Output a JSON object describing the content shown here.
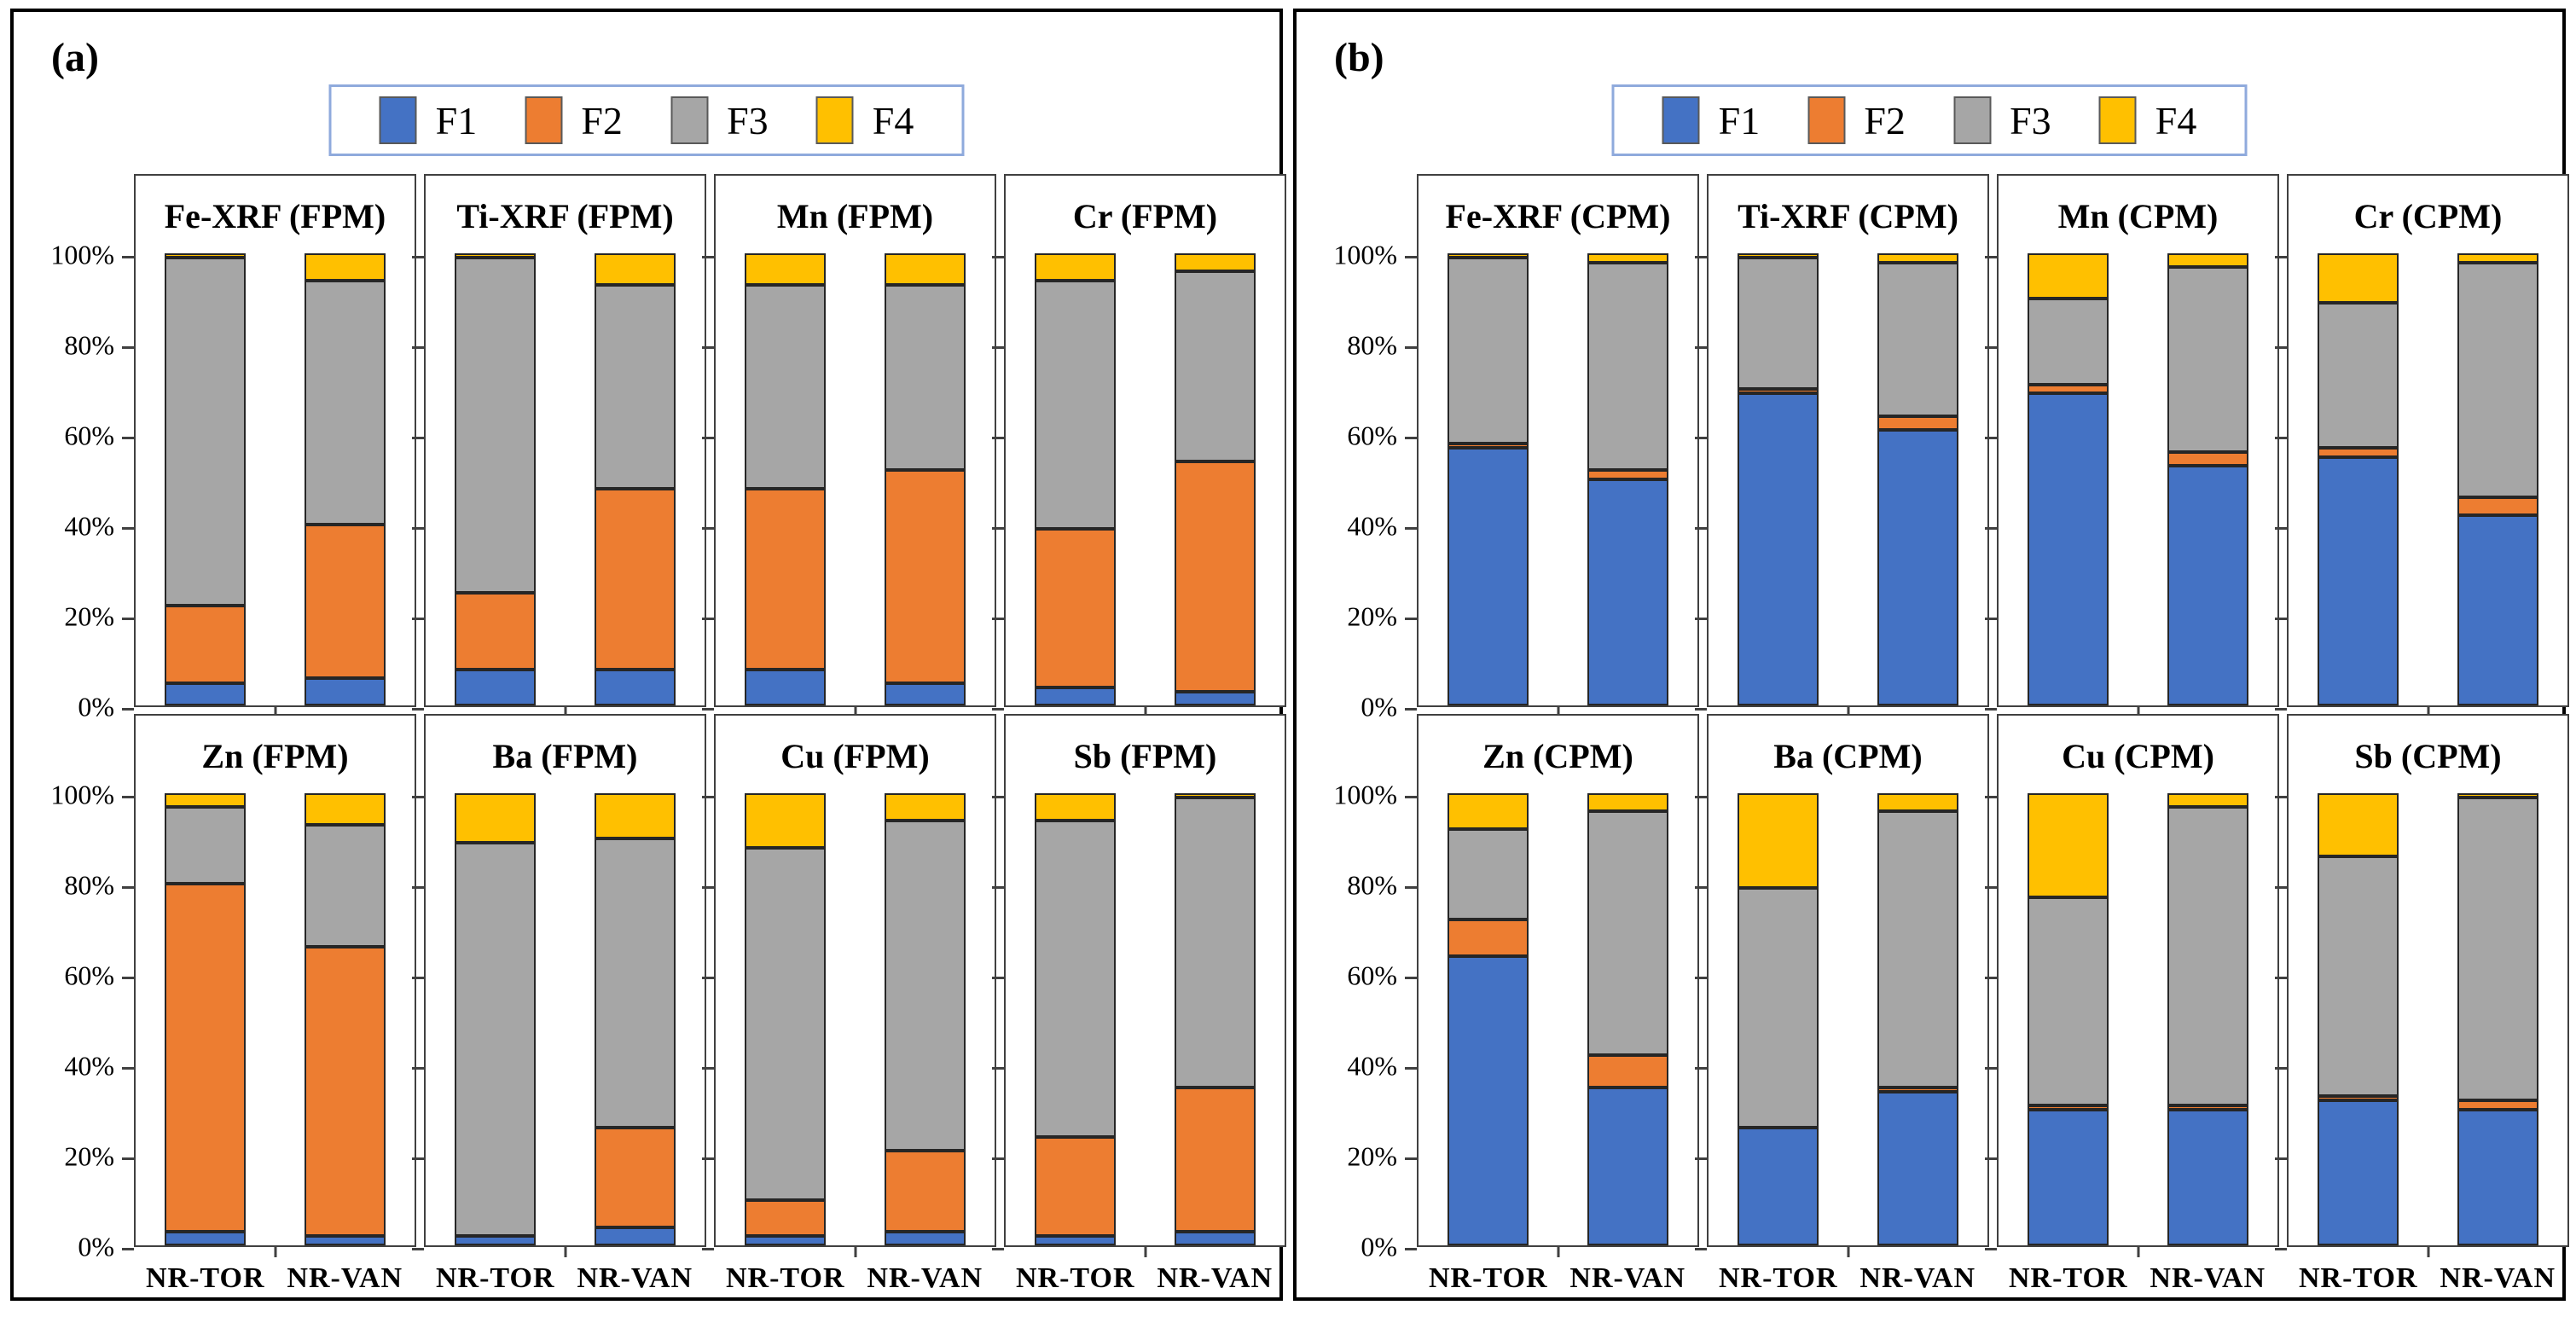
{
  "chart_data": {
    "type": "bar",
    "stacked": true,
    "unit": "percent",
    "categories": [
      "NR-TOR",
      "NR-VAN"
    ],
    "legend": [
      "F1",
      "F2",
      "F3",
      "F4"
    ],
    "series_colors": {
      "F1": "#4472C4",
      "F2": "#ED7D31",
      "F3": "#A6A6A6",
      "F4": "#FFC000"
    },
    "ylim": [
      0,
      100
    ],
    "y_tick_labels_top_to_bottom": [
      "100%",
      "80%",
      "60%",
      "40%",
      "20%",
      "0%"
    ],
    "grid": false,
    "legend_position": "top-center",
    "panels": [
      {
        "label": "(a)",
        "charts": [
          {
            "title": "Fe-XRF (FPM)",
            "series": [
              {
                "name": "F1",
                "values": [
                  5,
                  6
                ]
              },
              {
                "name": "F2",
                "values": [
                  17,
                  34
                ]
              },
              {
                "name": "F3",
                "values": [
                  77,
                  54
                ]
              },
              {
                "name": "F4",
                "values": [
                  1,
                  6
                ]
              }
            ]
          },
          {
            "title": "Ti-XRF (FPM)",
            "series": [
              {
                "name": "F1",
                "values": [
                  8,
                  8
                ]
              },
              {
                "name": "F2",
                "values": [
                  17,
                  40
                ]
              },
              {
                "name": "F3",
                "values": [
                  74,
                  45
                ]
              },
              {
                "name": "F4",
                "values": [
                  1,
                  7
                ]
              }
            ]
          },
          {
            "title": "Mn (FPM)",
            "series": [
              {
                "name": "F1",
                "values": [
                  8,
                  5
                ]
              },
              {
                "name": "F2",
                "values": [
                  40,
                  47
                ]
              },
              {
                "name": "F3",
                "values": [
                  45,
                  41
                ]
              },
              {
                "name": "F4",
                "values": [
                  7,
                  7
                ]
              }
            ]
          },
          {
            "title": "Cr (FPM)",
            "series": [
              {
                "name": "F1",
                "values": [
                  4,
                  3
                ]
              },
              {
                "name": "F2",
                "values": [
                  35,
                  51
                ]
              },
              {
                "name": "F3",
                "values": [
                  55,
                  42
                ]
              },
              {
                "name": "F4",
                "values": [
                  6,
                  4
                ]
              }
            ]
          },
          {
            "title": "Zn (FPM)",
            "series": [
              {
                "name": "F1",
                "values": [
                  3,
                  2
                ]
              },
              {
                "name": "F2",
                "values": [
                  77,
                  64
                ]
              },
              {
                "name": "F3",
                "values": [
                  17,
                  27
                ]
              },
              {
                "name": "F4",
                "values": [
                  3,
                  7
                ]
              }
            ]
          },
          {
            "title": "Ba (FPM)",
            "series": [
              {
                "name": "F1",
                "values": [
                  2,
                  4
                ]
              },
              {
                "name": "F2",
                "values": [
                  0,
                  22
                ]
              },
              {
                "name": "F3",
                "values": [
                  87,
                  64
                ]
              },
              {
                "name": "F4",
                "values": [
                  11,
                  10
                ]
              }
            ]
          },
          {
            "title": "Cu (FPM)",
            "series": [
              {
                "name": "F1",
                "values": [
                  2,
                  3
                ]
              },
              {
                "name": "F2",
                "values": [
                  8,
                  18
                ]
              },
              {
                "name": "F3",
                "values": [
                  78,
                  73
                ]
              },
              {
                "name": "F4",
                "values": [
                  12,
                  6
                ]
              }
            ]
          },
          {
            "title": "Sb (FPM)",
            "series": [
              {
                "name": "F1",
                "values": [
                  2,
                  3
                ]
              },
              {
                "name": "F2",
                "values": [
                  22,
                  32
                ]
              },
              {
                "name": "F3",
                "values": [
                  70,
                  64
                ]
              },
              {
                "name": "F4",
                "values": [
                  6,
                  1
                ]
              }
            ]
          }
        ]
      },
      {
        "label": "(b)",
        "charts": [
          {
            "title": "Fe-XRF (CPM)",
            "series": [
              {
                "name": "F1",
                "values": [
                  57,
                  50
                ]
              },
              {
                "name": "F2",
                "values": [
                  1,
                  2
                ]
              },
              {
                "name": "F3",
                "values": [
                  41,
                  46
                ]
              },
              {
                "name": "F4",
                "values": [
                  1,
                  2
                ]
              }
            ]
          },
          {
            "title": "Ti-XRF (CPM)",
            "series": [
              {
                "name": "F1",
                "values": [
                  69,
                  61
                ]
              },
              {
                "name": "F2",
                "values": [
                  1,
                  3
                ]
              },
              {
                "name": "F3",
                "values": [
                  29,
                  34
                ]
              },
              {
                "name": "F4",
                "values": [
                  1,
                  2
                ]
              }
            ]
          },
          {
            "title": "Mn (CPM)",
            "series": [
              {
                "name": "F1",
                "values": [
                  69,
                  53
                ]
              },
              {
                "name": "F2",
                "values": [
                  2,
                  3
                ]
              },
              {
                "name": "F3",
                "values": [
                  19,
                  41
                ]
              },
              {
                "name": "F4",
                "values": [
                  10,
                  3
                ]
              }
            ]
          },
          {
            "title": "Cr (CPM)",
            "series": [
              {
                "name": "F1",
                "values": [
                  55,
                  42
                ]
              },
              {
                "name": "F2",
                "values": [
                  2,
                  4
                ]
              },
              {
                "name": "F3",
                "values": [
                  32,
                  52
                ]
              },
              {
                "name": "F4",
                "values": [
                  11,
                  2
                ]
              }
            ]
          },
          {
            "title": "Zn (CPM)",
            "series": [
              {
                "name": "F1",
                "values": [
                  64,
                  35
                ]
              },
              {
                "name": "F2",
                "values": [
                  8,
                  7
                ]
              },
              {
                "name": "F3",
                "values": [
                  20,
                  54
                ]
              },
              {
                "name": "F4",
                "values": [
                  8,
                  4
                ]
              }
            ]
          },
          {
            "title": "Ba (CPM)",
            "series": [
              {
                "name": "F1",
                "values": [
                  26,
                  34
                ]
              },
              {
                "name": "F2",
                "values": [
                  0,
                  1
                ]
              },
              {
                "name": "F3",
                "values": [
                  53,
                  61
                ]
              },
              {
                "name": "F4",
                "values": [
                  21,
                  4
                ]
              }
            ]
          },
          {
            "title": "Cu (CPM)",
            "series": [
              {
                "name": "F1",
                "values": [
                  30,
                  30
                ]
              },
              {
                "name": "F2",
                "values": [
                  1,
                  1
                ]
              },
              {
                "name": "F3",
                "values": [
                  46,
                  66
                ]
              },
              {
                "name": "F4",
                "values": [
                  23,
                  3
                ]
              }
            ]
          },
          {
            "title": "Sb (CPM)",
            "series": [
              {
                "name": "F1",
                "values": [
                  32,
                  30
                ]
              },
              {
                "name": "F2",
                "values": [
                  1,
                  2
                ]
              },
              {
                "name": "F3",
                "values": [
                  53,
                  67
                ]
              },
              {
                "name": "F4",
                "values": [
                  14,
                  1
                ]
              }
            ]
          }
        ]
      }
    ]
  }
}
